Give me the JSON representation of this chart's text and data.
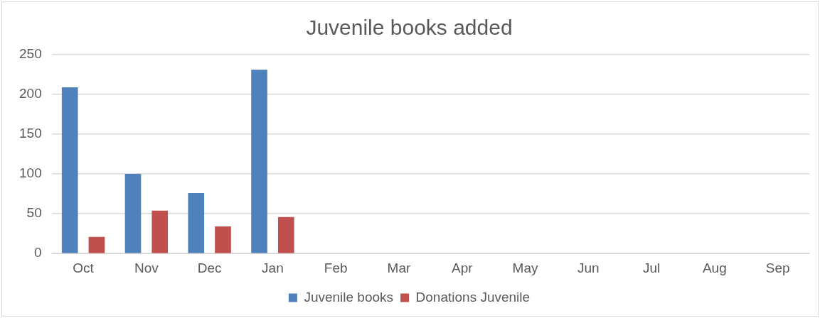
{
  "chart_data": {
    "type": "bar",
    "title": "Juvenile books added",
    "categories": [
      "Oct",
      "Nov",
      "Dec",
      "Jan",
      "Feb",
      "Mar",
      "Apr",
      "May",
      "Jun",
      "Jul",
      "Aug",
      "Sep"
    ],
    "series": [
      {
        "name": "Juvenile books",
        "color": "#4f81bd",
        "values": [
          209,
          100,
          76,
          231,
          null,
          null,
          null,
          null,
          null,
          null,
          null,
          null
        ]
      },
      {
        "name": "Donations Juvenile",
        "color": "#c0504d",
        "values": [
          21,
          54,
          34,
          46,
          null,
          null,
          null,
          null,
          null,
          null,
          null,
          null
        ]
      }
    ],
    "ylim": [
      0,
      250
    ],
    "yticks": [
      0,
      50,
      100,
      150,
      200,
      250
    ],
    "grid": "y",
    "legend": "bottom"
  }
}
